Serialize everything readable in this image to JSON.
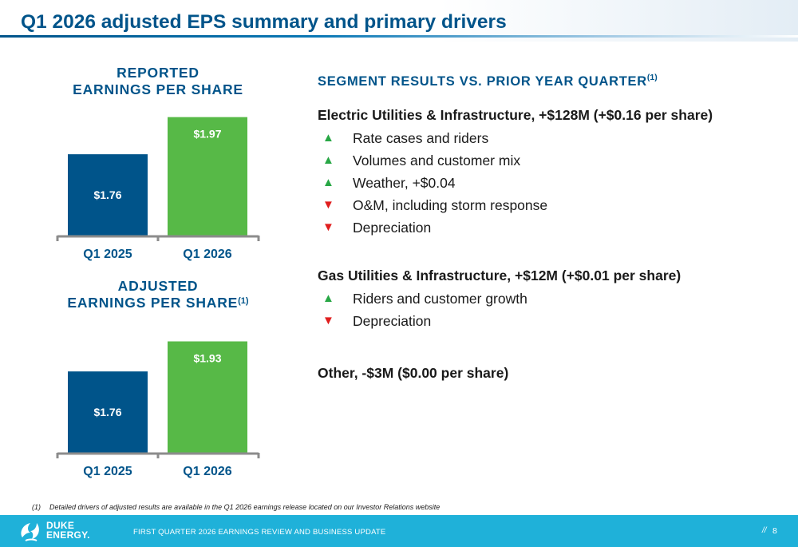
{
  "title": "Q1 2026 adjusted EPS summary and primary drivers",
  "reported_heading_line1": "REPORTED",
  "reported_heading_line2": "EARNINGS PER SHARE",
  "adjusted_heading_line1": "ADJUSTED",
  "adjusted_heading_line2": "EARNINGS PER SHARE",
  "adjusted_heading_sup": "(1)",
  "colors": {
    "brand_blue": "#00548a",
    "bar_green": "#57b947",
    "footer_cyan": "#1fb1d9",
    "up_green": "#28a745",
    "down_red": "#e01e1e"
  },
  "chart_data": [
    {
      "type": "bar",
      "title": "REPORTED EARNINGS PER SHARE",
      "categories": [
        "Q1 2025",
        "Q1 2026"
      ],
      "values": [
        1.76,
        1.97
      ],
      "labels": [
        "$1.76",
        "$1.97"
      ],
      "bar_colors": [
        "#00548a",
        "#57b947"
      ],
      "ylim": [
        1.3,
        2.0
      ],
      "grid": false,
      "legend": "none"
    },
    {
      "type": "bar",
      "title": "ADJUSTED EARNINGS PER SHARE(1)",
      "categories": [
        "Q1 2025",
        "Q1 2026"
      ],
      "values": [
        1.76,
        1.93
      ],
      "labels": [
        "$1.76",
        "$1.93"
      ],
      "bar_colors": [
        "#00548a",
        "#57b947"
      ],
      "ylim": [
        1.3,
        2.0
      ],
      "grid": false,
      "legend": "none"
    }
  ],
  "segments": {
    "heading": "SEGMENT RESULTS VS. PRIOR YEAR QUARTER",
    "heading_sup": "(1)",
    "electric": {
      "title": "Electric Utilities & Infrastructure, +$128M (+$0.16 per share)",
      "drivers": [
        {
          "direction": "up",
          "arrow": "▲",
          "text": "Rate cases and riders"
        },
        {
          "direction": "up",
          "arrow": "▲",
          "text": "Volumes and customer mix"
        },
        {
          "direction": "up",
          "arrow": "▲",
          "text": "Weather, +$0.04"
        },
        {
          "direction": "down",
          "arrow": "▼",
          "text": "O&M, including storm response"
        },
        {
          "direction": "down",
          "arrow": "▼",
          "text": "Depreciation"
        }
      ]
    },
    "gas": {
      "title": "Gas Utilities & Infrastructure, +$12M (+$0.01 per share)",
      "drivers": [
        {
          "direction": "up",
          "arrow": "▲",
          "text": "Riders and customer growth"
        },
        {
          "direction": "down",
          "arrow": "▼",
          "text": "Depreciation"
        }
      ]
    },
    "other": {
      "title": "Other, -$3M ($0.00 per share)"
    }
  },
  "footnote": {
    "marker": "(1)",
    "text": "Detailed drivers of adjusted results are available in the Q1 2026 earnings release located on our Investor Relations website"
  },
  "footer": {
    "logo_line1": "DUKE",
    "logo_line2": "ENERGY.",
    "text": "FIRST QUARTER 2026 EARNINGS REVIEW AND BUSINESS UPDATE",
    "separator": "//",
    "page_number": "8"
  }
}
